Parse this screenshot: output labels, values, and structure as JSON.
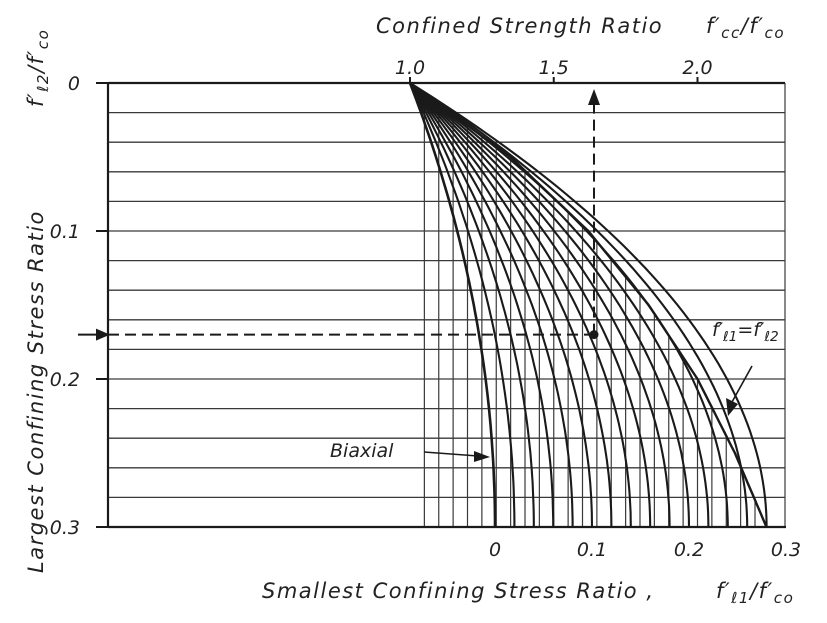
{
  "chart_data": {
    "type": "line",
    "title": "",
    "top_axis": {
      "label": "Confined Strength Ratio",
      "symbol": "f′cc/f′co",
      "ticks": [
        {
          "value": 1.0,
          "label": "1.0"
        },
        {
          "value": 1.5,
          "label": "1.5"
        },
        {
          "value": 2.0,
          "label": "2.0"
        }
      ],
      "range": [
        1.0,
        2.25
      ]
    },
    "left_axis": {
      "label": "Largest Confining Stress Ratio",
      "symbol": "f′ℓ2/f′co",
      "inverted": true,
      "range": [
        0,
        0.3
      ],
      "ticks": [
        {
          "value": 0,
          "label": "0"
        },
        {
          "value": 0.1,
          "label": "0.1"
        },
        {
          "value": 0.2,
          "label": "0.2"
        },
        {
          "value": 0.3,
          "label": "0.3"
        }
      ],
      "minor_step": 0.02
    },
    "bottom_axis": {
      "label": "Smallest Confining Stress Ratio ,",
      "symbol": "f′ℓ1/f′co",
      "range": [
        0,
        0.3
      ],
      "ticks": [
        {
          "value": 0,
          "label": "0"
        },
        {
          "value": 0.1,
          "label": "0.1"
        },
        {
          "value": 0.2,
          "label": "0.2"
        },
        {
          "value": 0.3,
          "label": "0.3"
        }
      ]
    },
    "vertical_grid_strength": [
      1.05,
      1.1,
      1.15,
      1.2,
      1.25,
      1.3,
      1.35,
      1.4,
      1.45,
      1.5,
      1.55,
      1.6,
      1.65,
      1.7,
      1.75,
      1.8,
      1.85,
      1.9,
      1.95,
      2.0,
      2.05,
      2.1,
      2.15,
      2.2
    ],
    "family_curves_fl1": [
      0,
      0.02,
      0.04,
      0.06,
      0.08,
      0.1,
      0.12,
      0.14,
      0.16,
      0.18,
      0.2,
      0.22,
      0.24,
      0.26,
      0.28
    ],
    "envelope": [
      {
        "fl2": 0,
        "fcc": 1.0
      },
      {
        "fl2": 0.05,
        "fcc": 1.35
      },
      {
        "fl2": 0.1,
        "fcc": 1.62
      },
      {
        "fl2": 0.15,
        "fcc": 1.83
      },
      {
        "fl2": 0.2,
        "fcc": 2.0
      },
      {
        "fl2": 0.25,
        "fcc": 2.13
      },
      {
        "fl2": 0.3,
        "fcc": 2.24
      }
    ],
    "example": {
      "fl2": 0.17,
      "fcc": 1.64,
      "fl1": 0.075
    },
    "annotations": {
      "biaxial": "Biaxial",
      "equal_lhs": "f′ℓ1",
      "equal_sign": "=",
      "equal_rhs": "f′ℓ2"
    },
    "grid": true,
    "legend": "none"
  }
}
